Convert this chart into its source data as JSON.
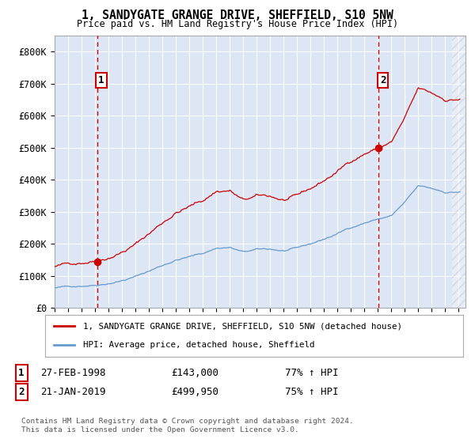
{
  "title": "1, SANDYGATE GRANGE DRIVE, SHEFFIELD, S10 5NW",
  "subtitle": "Price paid vs. HM Land Registry's House Price Index (HPI)",
  "background_color": "#dce6f5",
  "plot_bg_color": "#dce6f5",
  "ylim": [
    0,
    850000
  ],
  "yticks": [
    0,
    100000,
    200000,
    300000,
    400000,
    500000,
    600000,
    700000,
    800000
  ],
  "ytick_labels": [
    "£0",
    "£100K",
    "£200K",
    "£300K",
    "£400K",
    "£500K",
    "£600K",
    "£700K",
    "£800K"
  ],
  "sale1_date": 1998.15,
  "sale1_price": 143000,
  "sale2_date": 2019.06,
  "sale2_price": 499950,
  "sale1_label": "1",
  "sale2_label": "2",
  "sale1_ann": "27-FEB-1998",
  "sale1_amount": "£143,000",
  "sale1_hpi": "77% ↑ HPI",
  "sale2_ann": "21-JAN-2019",
  "sale2_amount": "£499,950",
  "sale2_hpi": "75% ↑ HPI",
  "legend_label1": "1, SANDYGATE GRANGE DRIVE, SHEFFIELD, S10 5NW (detached house)",
  "legend_label2": "HPI: Average price, detached house, Sheffield",
  "footer": "Contains HM Land Registry data © Crown copyright and database right 2024.\nThis data is licensed under the Open Government Licence v3.0.",
  "property_line_color": "#cc0000",
  "hpi_line_color": "#6699cc",
  "vline_color": "#cc0000",
  "grid_color": "#ffffff",
  "xmin": 1995.0,
  "xmax": 2025.5
}
